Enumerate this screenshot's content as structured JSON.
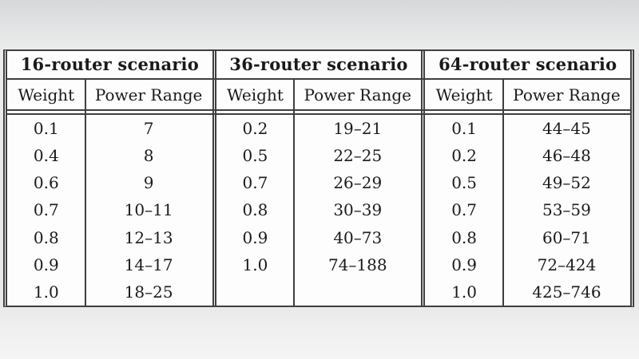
{
  "colors": {
    "background_top": "#d6d7d9",
    "background_bottom": "#f5f5f6",
    "table_background": "#fdfdfd",
    "rule_line": "#3f3f3f",
    "text": "#1a1a1a"
  },
  "tables": [
    {
      "title": "16-router scenario",
      "col_headers": [
        "Weight",
        "Power Range"
      ],
      "rows": [
        [
          "0.1",
          "7"
        ],
        [
          "0.4",
          "8"
        ],
        [
          "0.6",
          "9"
        ],
        [
          "0.7",
          "10–11"
        ],
        [
          "0.8",
          "12–13"
        ],
        [
          "0.9",
          "14–17"
        ],
        [
          "1.0",
          "18–25"
        ]
      ]
    },
    {
      "title": "36-router scenario",
      "col_headers": [
        "Weight",
        "Power Range"
      ],
      "rows": [
        [
          "0.2",
          "19–21"
        ],
        [
          "0.5",
          "22–25"
        ],
        [
          "0.7",
          "26–29"
        ],
        [
          "0.8",
          "30–39"
        ],
        [
          "0.9",
          "40–73"
        ],
        [
          "1.0",
          "74–188"
        ]
      ]
    },
    {
      "title": "64-router scenario",
      "col_headers": [
        "Weight",
        "Power Range"
      ],
      "rows": [
        [
          "0.1",
          "44–45"
        ],
        [
          "0.2",
          "46–48"
        ],
        [
          "0.5",
          "49–52"
        ],
        [
          "0.7",
          "53–59"
        ],
        [
          "0.8",
          "60–71"
        ],
        [
          "0.9",
          "72–424"
        ],
        [
          "1.0",
          "425–746"
        ]
      ]
    }
  ]
}
